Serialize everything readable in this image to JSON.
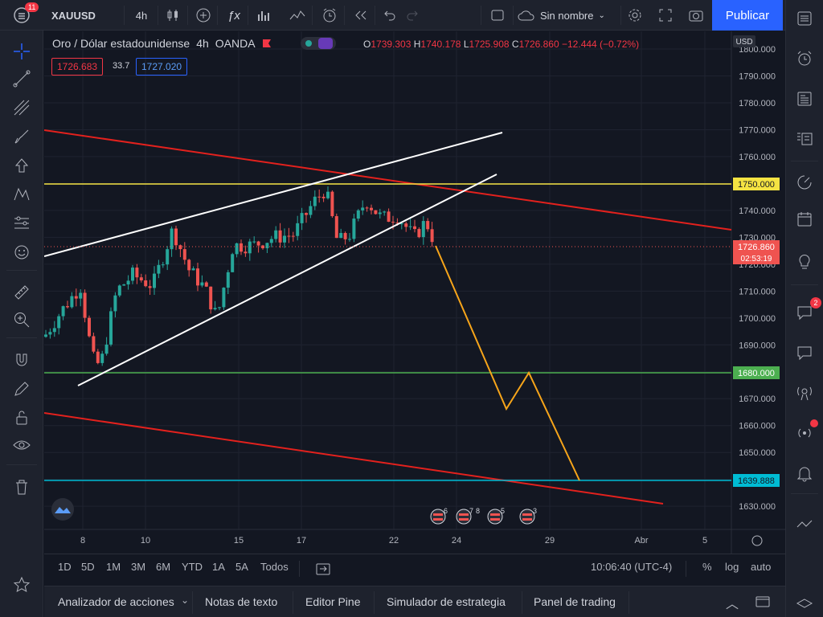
{
  "topbar": {
    "symbol": "XAUUSD",
    "notif_count": "11",
    "interval": "4h",
    "layout_name": "Sin nombre",
    "publish": "Publicar"
  },
  "legend": {
    "title": "Oro / Dólar estadounidense",
    "interval": "4h",
    "exchange": "OANDA",
    "o_label": "O",
    "o_value": "1739.303",
    "h_label": "H",
    "h_value": "1740.178",
    "l_label": "L",
    "l_value": "1725.908",
    "c_label": "C",
    "c_value": "1726.860",
    "change": "−12.444 (−0.72%)",
    "bid": "1726.683",
    "spread": "33.7",
    "ask": "1727.020"
  },
  "axis": {
    "currency": "USD",
    "ticks": [
      "1800.000",
      "1790.000",
      "1780.000",
      "1770.000",
      "1760.000",
      "1750.000",
      "1740.000",
      "1730.000",
      "1720.000",
      "1710.000",
      "1700.000",
      "1690.000",
      "1680.000",
      "1670.000",
      "1660.000",
      "1650.000",
      "1640.000",
      "1630.000"
    ],
    "tick_values": [
      1800,
      1790,
      1780,
      1770,
      1760,
      1750,
      1740,
      1730,
      1720,
      1710,
      1700,
      1690,
      1680,
      1670,
      1660,
      1650,
      1640,
      1630
    ],
    "xlabels": [
      "8",
      "10",
      "15",
      "17",
      "22",
      "24",
      "29",
      "Abr",
      "5"
    ]
  },
  "price_labels": {
    "yellow": "1750.000",
    "green": "1680.000",
    "cyan": "1639.888",
    "last": "1726.860",
    "countdown": "02:53:19"
  },
  "events": [
    "6",
    "7",
    "5",
    "8",
    "3"
  ],
  "ranges": [
    "1D",
    "5D",
    "1M",
    "3M",
    "6M",
    "YTD",
    "1A",
    "5A",
    "Todos"
  ],
  "clock": "10:06:40 (UTC-4)",
  "scale": {
    "percent": "%",
    "log": "log",
    "auto": "auto"
  },
  "panels": [
    "Analizador de acciones",
    "Notas de texto",
    "Editor Pine",
    "Simulador de estrategia",
    "Panel de trading"
  ],
  "right_badge": "2",
  "colors": {
    "up": "#26a69a",
    "down": "#ef5350",
    "yellow": "#f5e342",
    "green": "#4caf50",
    "cyan": "#00bcd4",
    "red_line": "#e3211d",
    "orange": "#f7a51a",
    "accent": "#2962ff"
  }
}
